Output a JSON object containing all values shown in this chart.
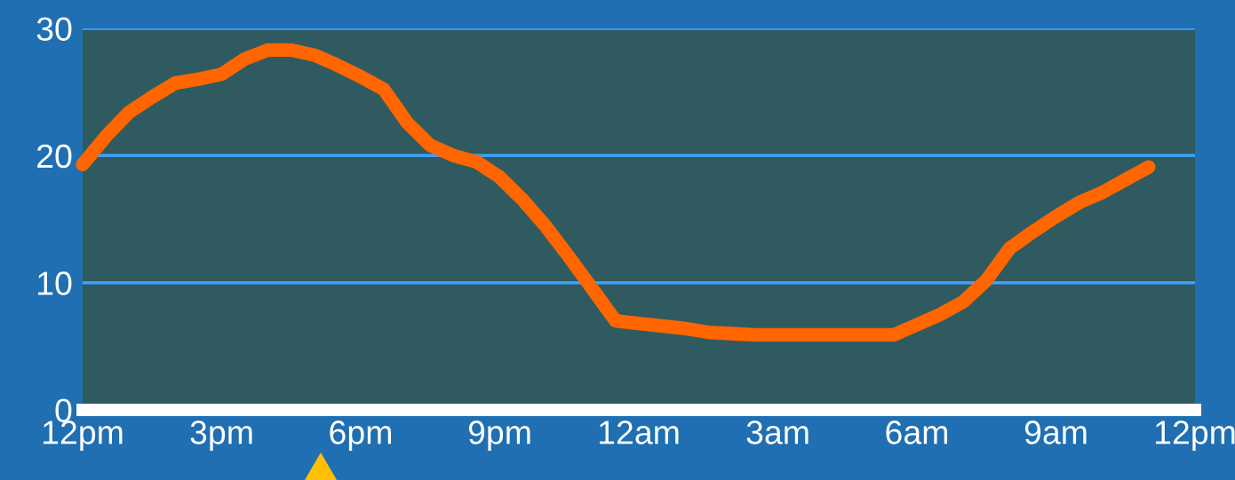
{
  "chart_data": {
    "type": "line",
    "categories": [
      "12pm",
      null,
      null,
      null,
      null,
      null,
      "3pm",
      null,
      null,
      null,
      null,
      null,
      "6pm",
      null,
      null,
      null,
      null,
      null,
      "9pm",
      null,
      null,
      null,
      null,
      null,
      "12am",
      null,
      null,
      null,
      null,
      null,
      "3am",
      null,
      null,
      null,
      null,
      null,
      "6am",
      null,
      null,
      null,
      null,
      null,
      "9am",
      null,
      null,
      null,
      null,
      null,
      "12pm"
    ],
    "series": [
      {
        "color": "#ff6600",
        "values": [
          19.3,
          21.5,
          23.4,
          24.6,
          25.7,
          26.0,
          26.4,
          27.6,
          28.3,
          28.3,
          27.9,
          27.1,
          26.2,
          25.2,
          22.6,
          20.8,
          20.0,
          19.5,
          18.3,
          16.5,
          14.4,
          12.0,
          9.5,
          7.0,
          6.8,
          6.6,
          6.4,
          6.1,
          6.0,
          5.9,
          5.9,
          5.9,
          5.9,
          5.9,
          5.9,
          5.9,
          6.7,
          7.5,
          8.5,
          10.2,
          12.7,
          14.0,
          15.2,
          16.3,
          17.1,
          18.1,
          19.1,
          null,
          null
        ]
      }
    ],
    "ylim": [
      0,
      30
    ],
    "yticks": [
      0,
      10,
      20,
      30
    ],
    "grid": "y",
    "line_style": "solid"
  }
}
